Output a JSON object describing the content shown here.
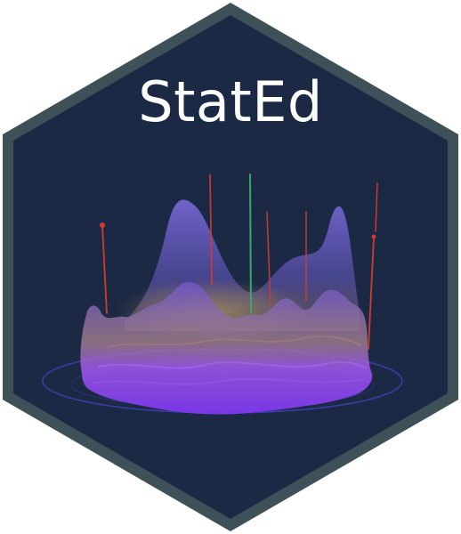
{
  "logo": {
    "title": "StatEd",
    "colors": {
      "background": "#1b2944",
      "border": "#3e5158",
      "title": "#ffffff",
      "surface_top": "#7b5ccd",
      "surface_bottom": "#8a3cf2",
      "surface_highlight": "#c49a6a",
      "spike_red": "#d33b2a",
      "spike_green": "#3fa56b",
      "ring": "#3d3fb0"
    }
  }
}
